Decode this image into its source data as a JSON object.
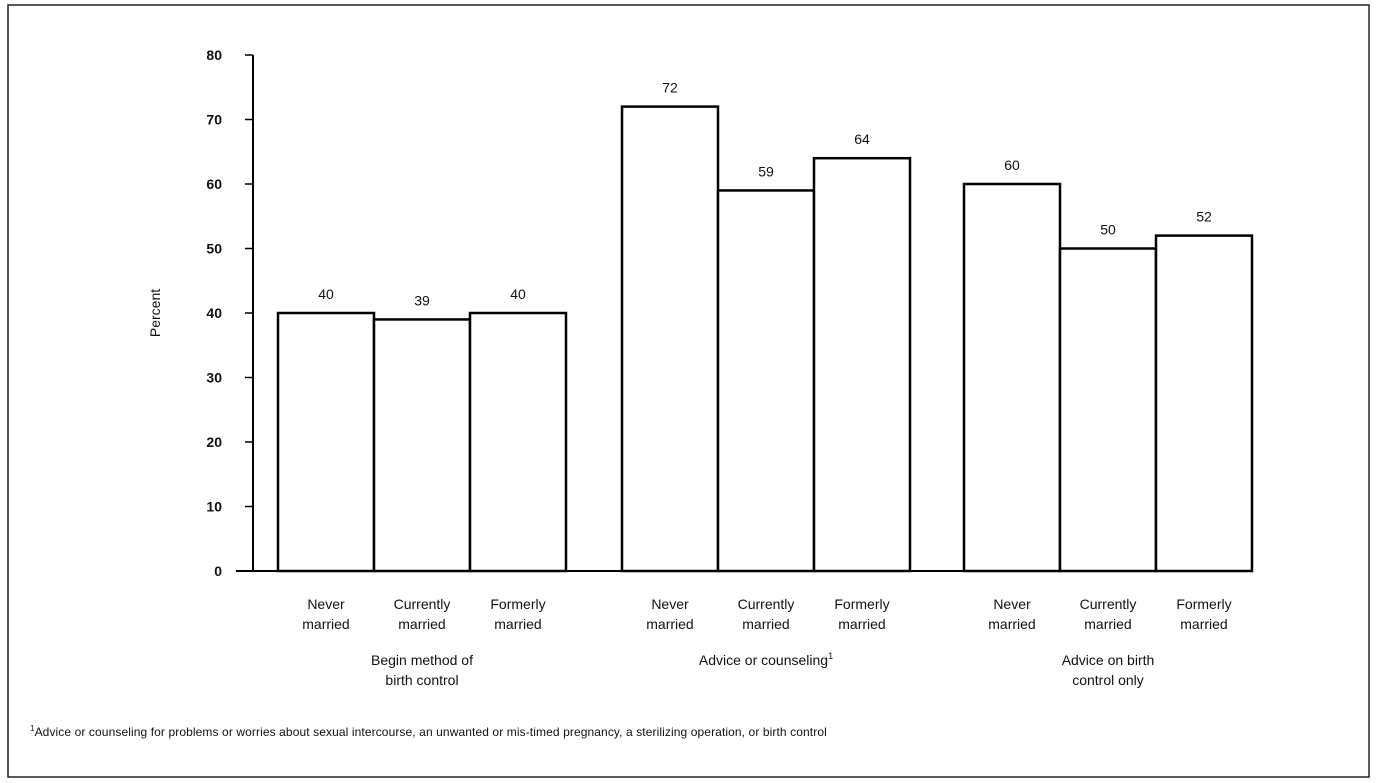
{
  "chart_data": {
    "type": "bar",
    "ylabel": "Percent",
    "ylim": [
      0,
      80
    ],
    "yticks": [
      0,
      10,
      20,
      30,
      40,
      50,
      60,
      70,
      80
    ],
    "grid": false,
    "legend": "none",
    "bar_fill": "#ffffff",
    "bar_stroke": "#000000",
    "groups": [
      {
        "label_lines": [
          "Begin method of",
          "birth control"
        ],
        "footnote_mark": "",
        "bars": [
          {
            "category_lines": [
              "Never",
              "married"
            ],
            "value": 40
          },
          {
            "category_lines": [
              "Currently",
              "married"
            ],
            "value": 39
          },
          {
            "category_lines": [
              "Formerly",
              "married"
            ],
            "value": 40
          }
        ]
      },
      {
        "label_lines": [
          "Advice or counseling"
        ],
        "footnote_mark": "1",
        "bars": [
          {
            "category_lines": [
              "Never",
              "married"
            ],
            "value": 72
          },
          {
            "category_lines": [
              "Currently",
              "married"
            ],
            "value": 59
          },
          {
            "category_lines": [
              "Formerly",
              "married"
            ],
            "value": 64
          }
        ]
      },
      {
        "label_lines": [
          "Advice on birth",
          "control only"
        ],
        "footnote_mark": "",
        "bars": [
          {
            "category_lines": [
              "Never",
              "married"
            ],
            "value": 60
          },
          {
            "category_lines": [
              "Currently",
              "married"
            ],
            "value": 50
          },
          {
            "category_lines": [
              "Formerly",
              "married"
            ],
            "value": 52
          }
        ]
      }
    ],
    "footnote": {
      "mark": "1",
      "text": "Advice or counseling for problems or worries about sexual intercourse, an unwanted or mis-timed pregnancy, a sterilizing operation, or birth control"
    }
  }
}
